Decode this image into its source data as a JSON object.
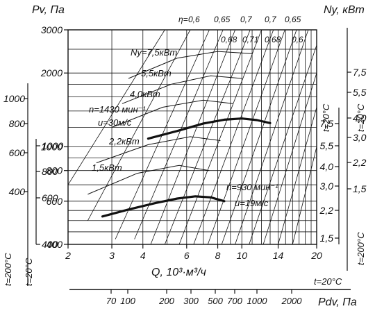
{
  "chart_data": {
    "type": "line",
    "subtype": "fan-performance-chart",
    "axes": {
      "x_main": {
        "label": "Q, 10³·м³/ч",
        "scale": "log",
        "range": [
          2,
          20
        ],
        "ticks": [
          2,
          3,
          4,
          5,
          6,
          7,
          8,
          9,
          10,
          11,
          12,
          13,
          14,
          15,
          16,
          17,
          18,
          19,
          20
        ],
        "tick_labels": [
          "2",
          "3",
          "4",
          "6",
          "8",
          "10",
          "14",
          "20"
        ],
        "tick_label_values": [
          2,
          3,
          4,
          6,
          8,
          10,
          14,
          20
        ]
      },
      "y_main": {
        "label": "Pv, Па",
        "scale": "log",
        "range": [
          400,
          3000
        ],
        "tick_labels": [
          "3000",
          "2000",
          "1000",
          "800",
          "600",
          "400"
        ],
        "tick_label_values": [
          3000,
          2000,
          1000,
          800,
          600,
          400
        ]
      },
      "y_left_200": {
        "label": "t=200°C",
        "tick_labels": [
          "1000",
          "800",
          "600",
          "400"
        ],
        "tick_label_values": [
          1000,
          800,
          600,
          400
        ]
      },
      "y_left_20": {
        "label": "t=20°C",
        "tick_labels": [
          "1000",
          "800",
          "600",
          "400"
        ],
        "tick_label_values": [
          1000,
          800,
          600,
          400
        ]
      },
      "x_bottom_pdv": {
        "label": "Pdv, Па",
        "temp_label": "t=20°C",
        "tick_labels": [
          "70",
          "100",
          "200",
          "300",
          "500",
          "700",
          "1000",
          "2000"
        ],
        "tick_label_values": [
          70,
          100,
          200,
          300,
          500,
          700,
          1000,
          2000
        ]
      },
      "ny_inner": {
        "temp_label": "t=20°C",
        "tick_labels": [
          "7,5",
          "5,5",
          "4,0",
          "3,0",
          "2,2",
          "1,5"
        ],
        "tick_label_values": [
          7.5,
          5.5,
          4.0,
          3.0,
          2.2,
          1.5
        ]
      },
      "ny_right": {
        "label": "Ny, кВт",
        "temp_label_top": "t=20°C",
        "temp_label_bottom": "t=200°C",
        "top_tick_labels": [
          "7,5",
          "5,5",
          "4,0",
          "3,0",
          "2,2",
          "1,5"
        ],
        "top_tick_values": [
          7.5,
          5.5,
          4.0,
          3.0,
          2.2,
          1.5
        ],
        "bottom_tick_labels": [
          "4,0",
          "3,0",
          "2,2",
          "1,5"
        ],
        "bottom_tick_values": [
          4.0,
          3.0,
          2.2,
          1.5
        ]
      }
    },
    "series": [
      {
        "label": "n=1430 мин⁻¹",
        "label_u": "u=30м/с",
        "points": [
          [
            4.2,
            1080
          ],
          [
            5.5,
            1160
          ],
          [
            7,
            1245
          ],
          [
            8.5,
            1290
          ],
          [
            10,
            1305
          ],
          [
            11.5,
            1285
          ],
          [
            13,
            1250
          ]
        ]
      },
      {
        "label": "n=930 мин⁻¹",
        "label_u": "u=19м/с",
        "points": [
          [
            2.75,
            520
          ],
          [
            3.5,
            555
          ],
          [
            4.5,
            590
          ],
          [
            5.5,
            615
          ],
          [
            6.5,
            628
          ],
          [
            7.5,
            622
          ],
          [
            8.5,
            600
          ]
        ]
      }
    ],
    "efficiency_labels": {
      "symbol": "η=",
      "top": [
        "0,6",
        "0,65",
        "0,7",
        "0,7",
        "0,65"
      ],
      "second": [
        "0,68",
        "0,71",
        "0,68",
        "0,6"
      ]
    },
    "power_labels": [
      "Ny=7,5кВт",
      "5,5кВт",
      "4,0кВт",
      "2,2кВт",
      "1,5кВт"
    ],
    "grid": true
  }
}
